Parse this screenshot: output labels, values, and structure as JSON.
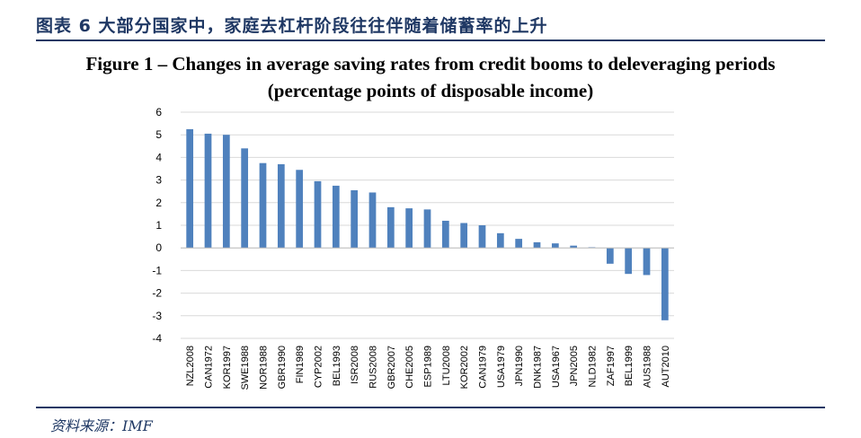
{
  "header": {
    "title": "图表 6  大部分国家中，家庭去杠杆阶段往往伴随着储蓄率的上升"
  },
  "figure": {
    "title_line1": "Figure 1 – Changes in average saving rates from credit booms to deleveraging periods",
    "title_line2": "(percentage points of disposable income)"
  },
  "footer": {
    "source": "资料来源：IMF"
  },
  "chart_data": {
    "type": "bar",
    "title": "Figure 1 – Changes in average saving rates from credit booms to deleveraging periods (percentage points of disposable income)",
    "xlabel": "",
    "ylabel": "",
    "ylim": [
      -4,
      6
    ],
    "yticks": [
      6,
      5,
      4,
      3,
      2,
      1,
      0,
      -1,
      -2,
      -3,
      -4
    ],
    "grid": true,
    "bar_color": "#4f81bd",
    "grid_color": "#d9d9d9",
    "categories": [
      "NZL2008",
      "CAN1972",
      "KOR1997",
      "SWE1988",
      "NOR1988",
      "GBR1990",
      "FIN1989",
      "CYP2002",
      "BEL1993",
      "ISR2008",
      "RUS2008",
      "GBR2007",
      "CHE2005",
      "ESP1989",
      "LTU2008",
      "KOR2002",
      "CAN1979",
      "USA1979",
      "JPN1990",
      "DNK1987",
      "USA1967",
      "JPN2005",
      "NLD1982",
      "ZAF1997",
      "BEL1999",
      "AUS1988",
      "AUT2010"
    ],
    "values": [
      5.25,
      5.05,
      5.0,
      4.4,
      3.75,
      3.7,
      3.45,
      2.95,
      2.75,
      2.55,
      2.45,
      1.8,
      1.75,
      1.7,
      1.2,
      1.1,
      1.0,
      0.65,
      0.4,
      0.25,
      0.2,
      0.1,
      0.03,
      -0.7,
      -1.15,
      -1.2,
      -3.2
    ]
  }
}
